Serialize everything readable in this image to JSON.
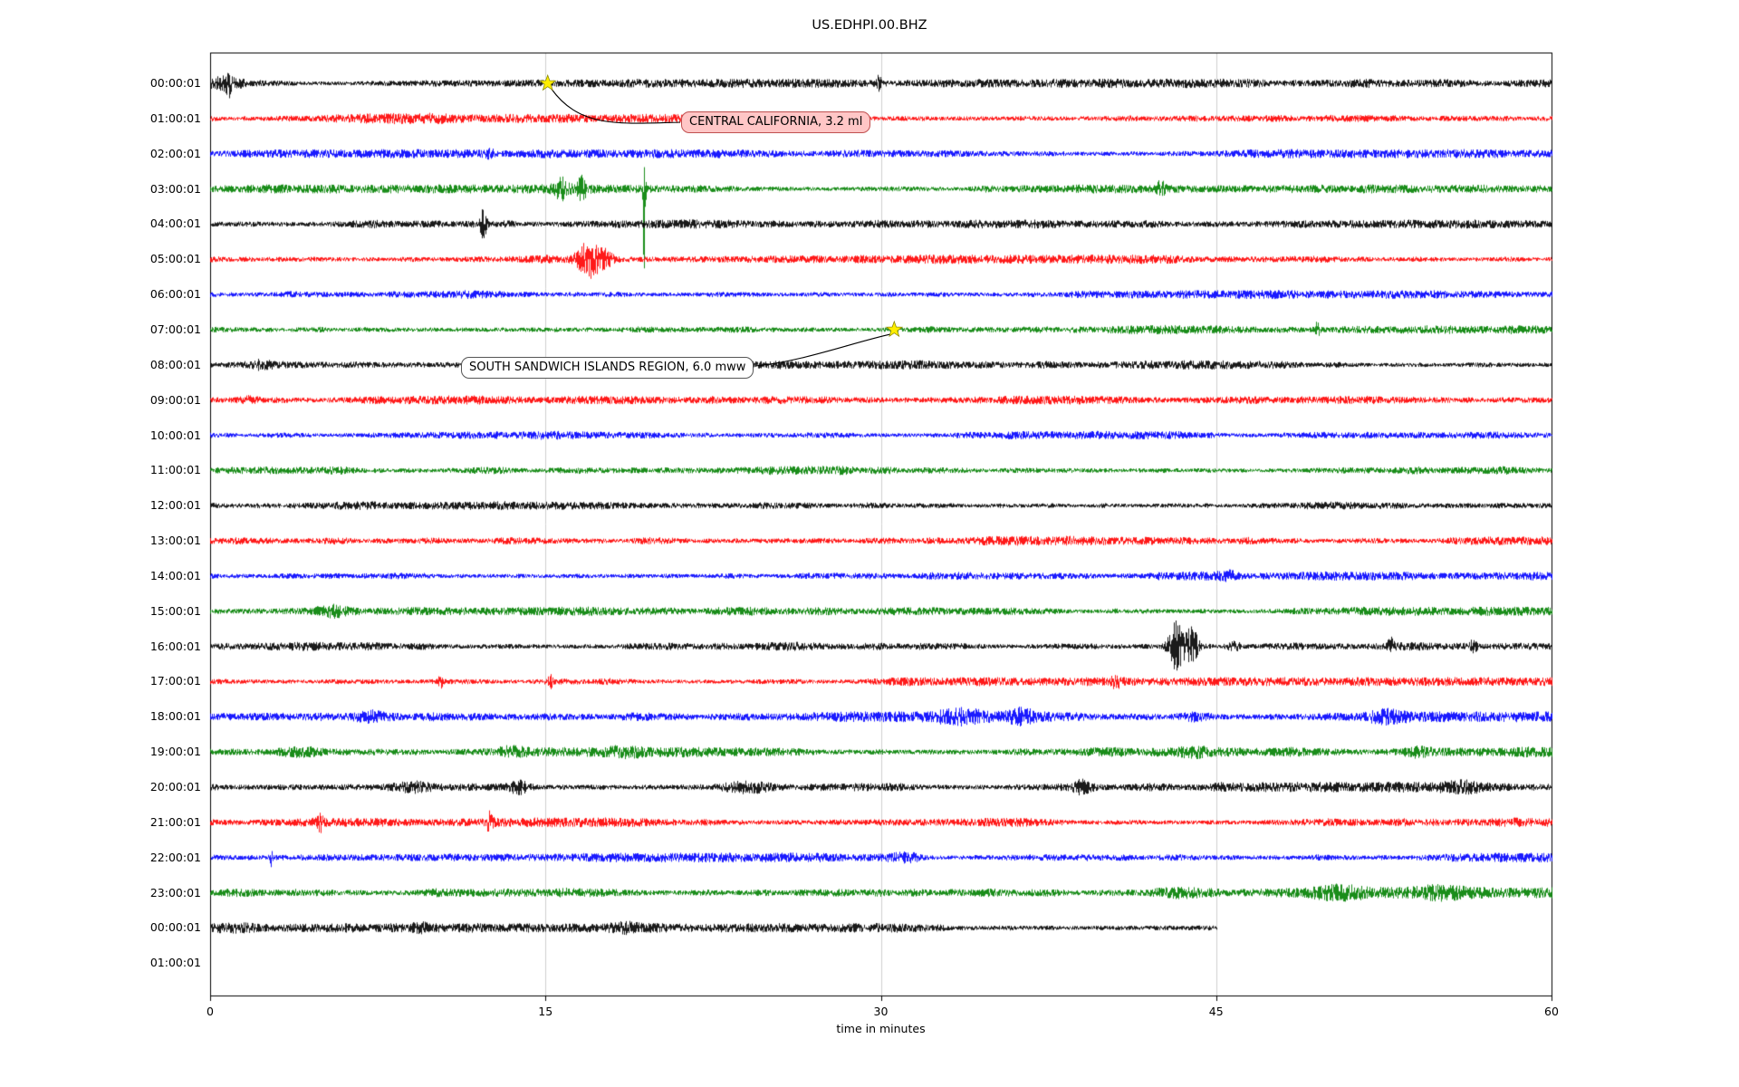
{
  "title": "US.EDHPI.00.BHZ",
  "chart_data": {
    "type": "line",
    "subtype": "helicorder_dayplot_seismogram",
    "title": "US.EDHPI.00.BHZ",
    "xlabel": "time in minutes",
    "ylabel": "",
    "x_range": [
      0,
      60
    ],
    "x_ticks": [
      0,
      15,
      30,
      45,
      60
    ],
    "gridlines_x": [
      15,
      30,
      45
    ],
    "grid": "vertical-only",
    "legend": "none",
    "trace_color_cycle": [
      "#000000",
      "#ff0000",
      "#0000ff",
      "#008000"
    ],
    "rows": [
      {
        "label": "00:00:01",
        "color": "#000000",
        "start": 0,
        "end": 60,
        "amp": 3.3,
        "seed": 11,
        "events": [
          {
            "t": 0.5,
            "a": 5,
            "w": 0.6
          },
          {
            "t": 0.8,
            "a": 8,
            "w": 0.1,
            "b": -0.6
          },
          {
            "t": 29.9,
            "a": 14,
            "w": 0.05,
            "b": 0.8
          }
        ]
      },
      {
        "label": "01:00:01",
        "color": "#ff0000",
        "start": 0,
        "end": 60,
        "amp": 3.2,
        "seed": 22,
        "events": [
          {
            "t": 9,
            "a": 1.5,
            "w": 2
          }
        ]
      },
      {
        "label": "02:00:01",
        "color": "#0000ff",
        "start": 0,
        "end": 60,
        "amp": 3.2,
        "seed": 33,
        "events": [
          {
            "t": 12.5,
            "a": 4,
            "w": 0.1
          }
        ]
      },
      {
        "label": "03:00:01",
        "color": "#008000",
        "start": 0,
        "end": 60,
        "amp": 3.2,
        "seed": 44,
        "events": [
          {
            "t": 15.7,
            "a": 10,
            "w": 0.25
          },
          {
            "t": 16.6,
            "a": 12,
            "w": 0.15
          },
          {
            "t": 19.4,
            "a": 72,
            "w": 0.04,
            "b": -0.95
          },
          {
            "t": 42.5,
            "a": 7,
            "w": 0.12
          }
        ]
      },
      {
        "label": "04:00:01",
        "color": "#000000",
        "start": 0,
        "end": 60,
        "amp": 3.2,
        "seed": 55,
        "events": [
          {
            "t": 12.2,
            "a": 14,
            "w": 0.1
          }
        ]
      },
      {
        "label": "05:00:01",
        "color": "#ff0000",
        "start": 0,
        "end": 60,
        "amp": 3.3,
        "seed": 66,
        "events": [
          {
            "t": 16.9,
            "a": 17,
            "w": 0.35
          },
          {
            "t": 17.6,
            "a": 8,
            "w": 0.3
          }
        ]
      },
      {
        "label": "06:00:01",
        "color": "#0000ff",
        "start": 0,
        "end": 60,
        "amp": 3.2,
        "seed": 77,
        "events": []
      },
      {
        "label": "07:00:01",
        "color": "#008000",
        "start": 0,
        "end": 60,
        "amp": 3.2,
        "seed": 88,
        "events": [
          {
            "t": 49.5,
            "a": 7,
            "w": 0.08
          }
        ]
      },
      {
        "label": "08:00:01",
        "color": "#000000",
        "start": 0,
        "end": 60,
        "amp": 3.2,
        "seed": 99,
        "events": [
          {
            "t": 2.3,
            "a": 3,
            "w": 0.4
          }
        ]
      },
      {
        "label": "09:00:01",
        "color": "#ff0000",
        "start": 0,
        "end": 60,
        "amp": 3.2,
        "seed": 110,
        "events": [
          {
            "t": 1.8,
            "a": 3,
            "w": 0.3
          }
        ]
      },
      {
        "label": "10:00:01",
        "color": "#0000ff",
        "start": 0,
        "end": 60,
        "amp": 3.2,
        "seed": 121,
        "events": []
      },
      {
        "label": "11:00:01",
        "color": "#008000",
        "start": 0,
        "end": 60,
        "amp": 3.2,
        "seed": 132,
        "events": []
      },
      {
        "label": "12:00:01",
        "color": "#000000",
        "start": 0,
        "end": 60,
        "amp": 3.2,
        "seed": 143,
        "events": []
      },
      {
        "label": "13:00:01",
        "color": "#ff0000",
        "start": 0,
        "end": 60,
        "amp": 3.5,
        "seed": 154,
        "events": []
      },
      {
        "label": "14:00:01",
        "color": "#0000ff",
        "start": 0,
        "end": 60,
        "amp": 3.2,
        "seed": 165,
        "events": [
          {
            "t": 45.5,
            "a": 3,
            "w": 0.3
          }
        ]
      },
      {
        "label": "15:00:01",
        "color": "#008000",
        "start": 0,
        "end": 60,
        "amp": 3.2,
        "seed": 176,
        "events": [
          {
            "t": 5.5,
            "a": 4,
            "w": 0.4
          }
        ]
      },
      {
        "label": "16:00:01",
        "color": "#000000",
        "start": 0,
        "end": 60,
        "amp": 3.2,
        "seed": 187,
        "events": [
          {
            "t": 43.2,
            "a": 27,
            "w": 0.25
          },
          {
            "t": 43.9,
            "a": 21,
            "w": 0.18
          },
          {
            "t": 45.8,
            "a": 5,
            "w": 0.2
          },
          {
            "t": 52.8,
            "a": 8,
            "w": 0.1
          },
          {
            "t": 56.5,
            "a": 7,
            "w": 0.1
          }
        ]
      },
      {
        "label": "17:00:01",
        "color": "#ff0000",
        "start": 0,
        "end": 60,
        "amp": 3.2,
        "seed": 198,
        "events": [
          {
            "t": 10.3,
            "a": 6,
            "w": 0.08
          },
          {
            "t": 15.2,
            "a": 6,
            "w": 0.08
          },
          {
            "t": 40.5,
            "a": 6,
            "w": 0.12
          }
        ]
      },
      {
        "label": "18:00:01",
        "color": "#0000ff",
        "start": 0,
        "end": 60,
        "amp": 3.8,
        "seed": 209,
        "events": [
          {
            "t": 7,
            "a": 4,
            "w": 0.5
          },
          {
            "t": 33.5,
            "a": 5,
            "w": 0.8
          },
          {
            "t": 36.3,
            "a": 6,
            "w": 0.4
          },
          {
            "t": 44,
            "a": 4,
            "w": 0.5
          },
          {
            "t": 52.5,
            "a": 6,
            "w": 0.6
          }
        ]
      },
      {
        "label": "19:00:01",
        "color": "#008000",
        "start": 0,
        "end": 60,
        "amp": 3.8,
        "seed": 220,
        "events": [
          {
            "t": 4,
            "a": 4,
            "w": 0.8
          },
          {
            "t": 13.5,
            "a": 4,
            "w": 0.5
          },
          {
            "t": 18.5,
            "a": 4,
            "w": 0.5
          },
          {
            "t": 44,
            "a": 4,
            "w": 0.5
          },
          {
            "t": 54,
            "a": 4,
            "w": 0.6
          }
        ]
      },
      {
        "label": "20:00:01",
        "color": "#000000",
        "start": 0,
        "end": 60,
        "amp": 3.8,
        "seed": 231,
        "events": [
          {
            "t": 9,
            "a": 4,
            "w": 0.6
          },
          {
            "t": 13.8,
            "a": 5,
            "w": 0.3
          },
          {
            "t": 24,
            "a": 5,
            "w": 0.8
          },
          {
            "t": 39,
            "a": 6,
            "w": 0.3
          },
          {
            "t": 56,
            "a": 4,
            "w": 0.6
          }
        ]
      },
      {
        "label": "21:00:01",
        "color": "#ff0000",
        "start": 0,
        "end": 60,
        "amp": 3.4,
        "seed": 242,
        "events": [
          {
            "t": 4.9,
            "a": 9,
            "w": 0.08
          },
          {
            "t": 12.5,
            "a": 11,
            "w": 0.1
          }
        ]
      },
      {
        "label": "22:00:01",
        "color": "#0000ff",
        "start": 0,
        "end": 60,
        "amp": 3.4,
        "seed": 253,
        "events": [
          {
            "t": 2.7,
            "a": 9,
            "w": 0.06
          },
          {
            "t": 31,
            "a": 4,
            "w": 0.5
          }
        ]
      },
      {
        "label": "23:00:01",
        "color": "#008000",
        "start": 0,
        "end": 60,
        "amp": 4.0,
        "seed": 264,
        "events": [
          {
            "t": 43.5,
            "a": 4,
            "w": 0.8
          },
          {
            "t": 50.5,
            "a": 4,
            "w": 0.8
          },
          {
            "t": 55,
            "a": 4,
            "w": 0.8
          }
        ]
      },
      {
        "label": "00:00:01",
        "color": "#000000",
        "start": 0,
        "end": 45,
        "amp": 3.4,
        "seed": 275,
        "events": [
          {
            "t": 1,
            "a": 3,
            "w": 0.8
          },
          {
            "t": 9.5,
            "a": 4,
            "w": 0.4
          },
          {
            "t": 18.5,
            "a": 3,
            "w": 0.4
          }
        ]
      },
      {
        "label": "01:00:01",
        "color": null,
        "start": 0,
        "end": 0,
        "amp": 0,
        "seed": 286,
        "events": []
      }
    ],
    "events": [
      {
        "label": "CENTRAL CALIFORNIA, 3.2 ml",
        "row": 0,
        "minute": 15.1,
        "marker": "star"
      },
      {
        "label": "SOUTH SANDWICH ISLANDS REGION, 6.0 mww",
        "row": 7,
        "minute": 30.6,
        "marker": "star"
      }
    ]
  },
  "annotation_style": {
    "marker_fill": "#ffee00",
    "marker_edge": "#8a8a00",
    "box0_fill": "#ffc6c6",
    "box0_border": "#c05050",
    "box1_fill": "#ffffff",
    "box1_border": "#555555",
    "leader_color": "#000000"
  }
}
